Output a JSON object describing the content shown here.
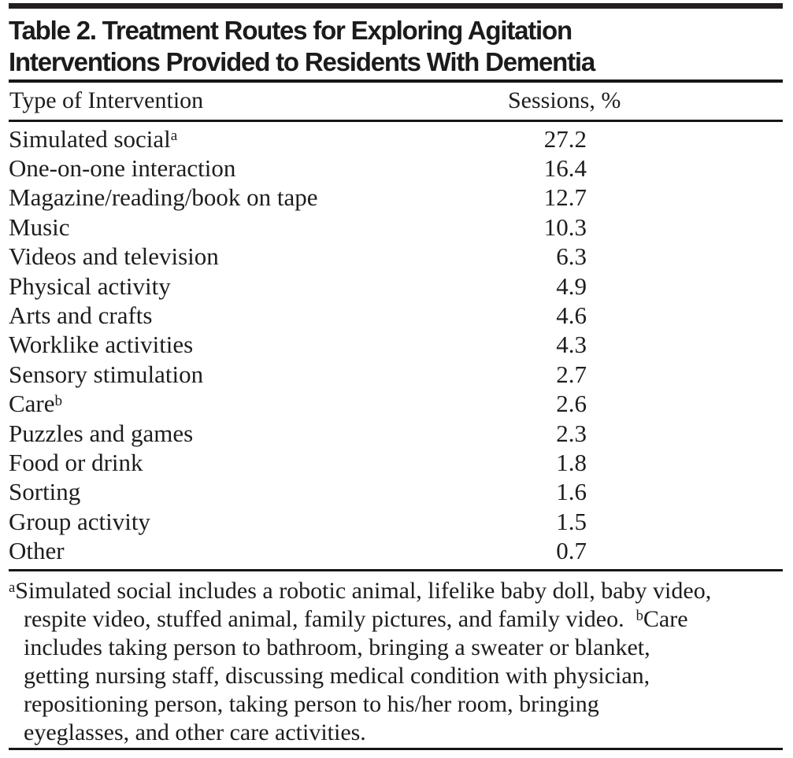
{
  "page": {
    "background": "#ffffff",
    "text_color": "#1d1d1d",
    "rule_color": "#161616",
    "top_bar_color": "#231f20"
  },
  "table": {
    "title": "Table 2. Treatment Routes for Exploring Agitation Interventions Provided to Residents With Dementia",
    "columns": {
      "intervention": "Type of Intervention",
      "sessions": "Sessions, %"
    },
    "rows": [
      {
        "label": "Simulated social",
        "sup": "a",
        "value": "27.2"
      },
      {
        "label": "One-on-one interaction",
        "value": "16.4"
      },
      {
        "label": "Magazine/reading/book on tape",
        "value": "12.7"
      },
      {
        "label": "Music",
        "value": "10.3"
      },
      {
        "label": "Videos and television",
        "value": "6.3"
      },
      {
        "label": "Physical activity",
        "value": "4.9"
      },
      {
        "label": "Arts and crafts",
        "value": "4.6"
      },
      {
        "label": "Worklike activities",
        "value": "4.3"
      },
      {
        "label": "Sensory stimulation",
        "value": "2.7"
      },
      {
        "label": "Care",
        "sup": "b",
        "value": "2.6"
      },
      {
        "label": "Puzzles and games",
        "value": "2.3"
      },
      {
        "label": "Food or drink",
        "value": "1.8"
      },
      {
        "label": "Sorting",
        "value": "1.6"
      },
      {
        "label": "Group activity",
        "value": "1.5"
      },
      {
        "label": "Other",
        "value": "0.7"
      }
    ],
    "footnote": {
      "lines": [
        [
          {
            "sup": "a"
          },
          {
            "t": "Simulated social includes a robotic animal, lifelike baby doll, baby video,"
          }
        ],
        [
          {
            "t": "respite video, stuffed animal, family pictures, and family video. "
          },
          {
            "sup": "b"
          },
          {
            "t": "Care"
          }
        ],
        [
          {
            "t": "includes taking person to bathroom, bringing a sweater or blanket,"
          }
        ],
        [
          {
            "t": "getting nursing staff, discussing medical condition with physician,"
          }
        ],
        [
          {
            "t": "repositioning person, taking person to his/her room, bringing"
          }
        ],
        [
          {
            "t": "eyeglasses, and other care activities."
          }
        ]
      ]
    }
  }
}
